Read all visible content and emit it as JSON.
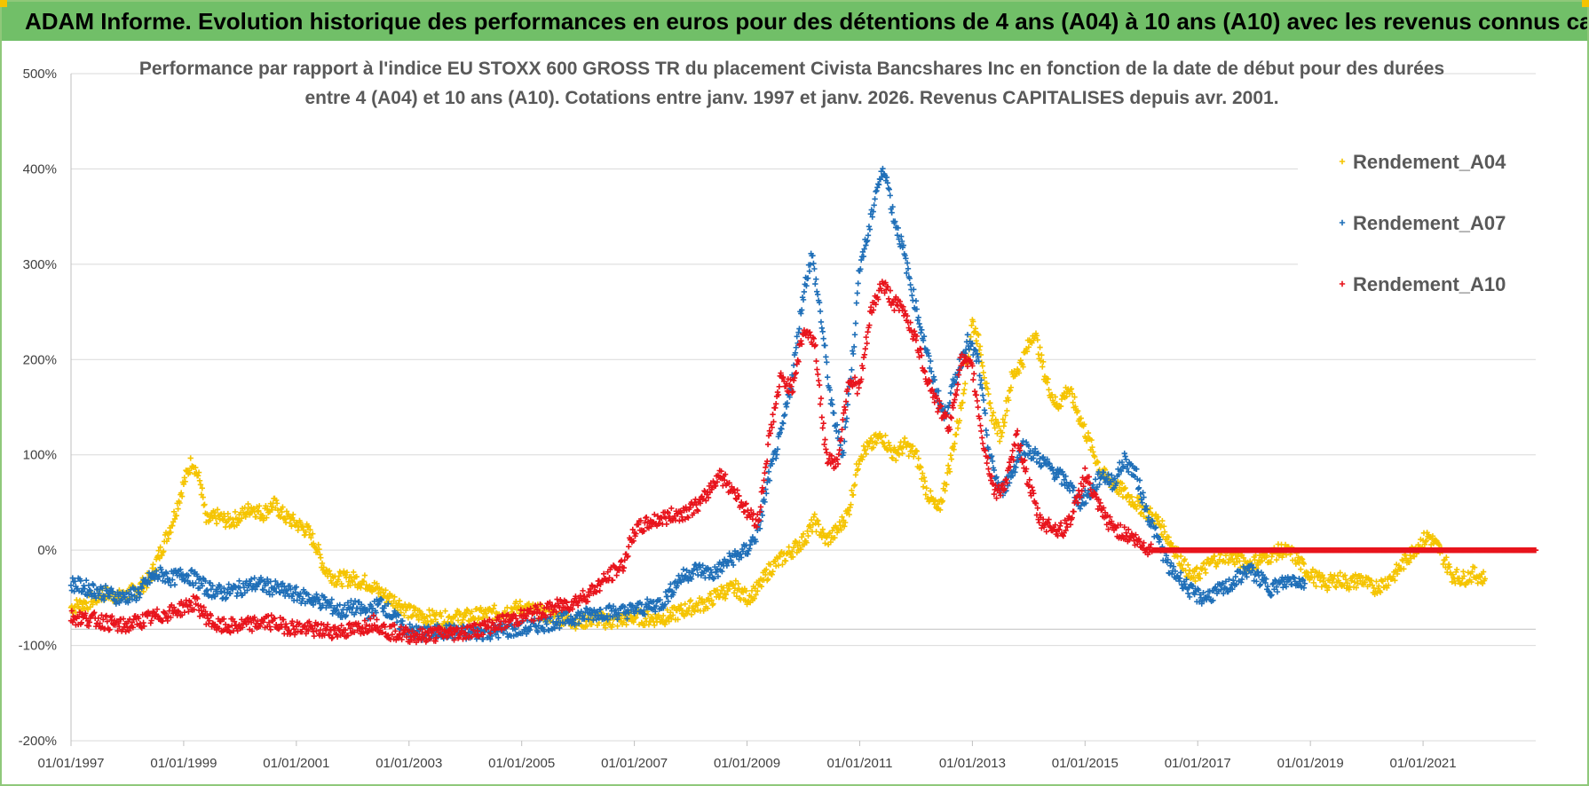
{
  "banner": {
    "title": "ADAM Informe. Evolution historique des performances en euros pour des détentions de 4 ans (A04) à 10 ans (A10) avec les revenus connus capitalisés"
  },
  "chart_data": {
    "type": "scatter",
    "title_line1": "Performance par rapport à l'indice EU STOXX 600 GROSS TR  du placement Civista Bancshares Inc en fonction de la date de début pour des durées",
    "title_line2": "entre 4 (A04) et 10 ans (A10).  Cotations entre janv. 1997 et janv. 2026. Revenus CAPITALISES depuis avr. 2001.",
    "xlim": [
      1997.0,
      2023.0
    ],
    "ylim": [
      -200,
      500
    ],
    "x_ticks": [
      1997,
      1999,
      2001,
      2003,
      2005,
      2007,
      2009,
      2011,
      2013,
      2015,
      2017,
      2019,
      2021
    ],
    "x_tick_labels": [
      "01/01/1997",
      "01/01/1999",
      "01/01/2001",
      "01/01/2003",
      "01/01/2005",
      "01/01/2007",
      "01/01/2009",
      "01/01/2011",
      "01/01/2013",
      "01/01/2015",
      "01/01/2017",
      "01/01/2019",
      "01/01/2021"
    ],
    "y_ticks": [
      -200,
      -100,
      0,
      100,
      200,
      300,
      400,
      500
    ],
    "y_tick_labels": [
      "-200%",
      "-100%",
      "0%",
      "100%",
      "200%",
      "300%",
      "400%",
      "500%"
    ],
    "grid": "horizontal",
    "legend_position": "top-right",
    "series": [
      {
        "name": "Rendement_A04",
        "color": "#f5c400",
        "points": [
          [
            1997.0,
            -60
          ],
          [
            1997.3,
            -55
          ],
          [
            1997.6,
            -45
          ],
          [
            1997.9,
            -50
          ],
          [
            1998.2,
            -40
          ],
          [
            1998.4,
            -30
          ],
          [
            1998.6,
            0
          ],
          [
            1998.8,
            30
          ],
          [
            1999.0,
            70
          ],
          [
            1999.15,
            95
          ],
          [
            1999.3,
            70
          ],
          [
            1999.4,
            30
          ],
          [
            1999.6,
            35
          ],
          [
            1999.8,
            30
          ],
          [
            2000.0,
            35
          ],
          [
            2000.2,
            45
          ],
          [
            2000.4,
            38
          ],
          [
            2000.6,
            48
          ],
          [
            2000.8,
            35
          ],
          [
            2001.0,
            28
          ],
          [
            2001.2,
            20
          ],
          [
            2001.35,
            5
          ],
          [
            2001.5,
            -20
          ],
          [
            2001.7,
            -30
          ],
          [
            2002.0,
            -30
          ],
          [
            2002.3,
            -35
          ],
          [
            2002.5,
            -45
          ],
          [
            2002.8,
            -55
          ],
          [
            2003.0,
            -65
          ],
          [
            2003.3,
            -70
          ],
          [
            2003.6,
            -72
          ],
          [
            2004.0,
            -70
          ],
          [
            2004.3,
            -68
          ],
          [
            2004.6,
            -65
          ],
          [
            2005.0,
            -60
          ],
          [
            2005.3,
            -65
          ],
          [
            2005.6,
            -70
          ],
          [
            2006.0,
            -75
          ],
          [
            2006.3,
            -72
          ],
          [
            2006.6,
            -75
          ],
          [
            2007.0,
            -70
          ],
          [
            2007.3,
            -72
          ],
          [
            2007.6,
            -70
          ],
          [
            2008.0,
            -60
          ],
          [
            2008.3,
            -55
          ],
          [
            2008.5,
            -45
          ],
          [
            2008.8,
            -40
          ],
          [
            2009.0,
            -50
          ],
          [
            2009.2,
            -40
          ],
          [
            2009.4,
            -20
          ],
          [
            2009.6,
            -10
          ],
          [
            2009.8,
            0
          ],
          [
            2010.0,
            10
          ],
          [
            2010.2,
            30
          ],
          [
            2010.4,
            10
          ],
          [
            2010.6,
            20
          ],
          [
            2010.8,
            40
          ],
          [
            2011.0,
            100
          ],
          [
            2011.2,
            110
          ],
          [
            2011.4,
            120
          ],
          [
            2011.6,
            100
          ],
          [
            2011.8,
            110
          ],
          [
            2012.0,
            100
          ],
          [
            2012.2,
            60
          ],
          [
            2012.4,
            40
          ],
          [
            2012.6,
            90
          ],
          [
            2012.8,
            150
          ],
          [
            2013.0,
            240
          ],
          [
            2013.15,
            210
          ],
          [
            2013.3,
            150
          ],
          [
            2013.5,
            120
          ],
          [
            2013.7,
            180
          ],
          [
            2013.9,
            200
          ],
          [
            2014.1,
            230
          ],
          [
            2014.3,
            180
          ],
          [
            2014.5,
            150
          ],
          [
            2014.7,
            170
          ],
          [
            2014.9,
            140
          ],
          [
            2015.1,
            110
          ],
          [
            2015.3,
            80
          ],
          [
            2015.5,
            70
          ],
          [
            2015.7,
            60
          ],
          [
            2015.9,
            50
          ],
          [
            2016.1,
            40
          ],
          [
            2016.3,
            30
          ],
          [
            2016.5,
            10
          ],
          [
            2016.7,
            -10
          ],
          [
            2016.9,
            -30
          ],
          [
            2017.1,
            -20
          ],
          [
            2017.3,
            -10
          ],
          [
            2017.5,
            -5
          ],
          [
            2017.7,
            -10
          ],
          [
            2017.9,
            -15
          ],
          [
            2018.1,
            -10
          ],
          [
            2018.3,
            -5
          ],
          [
            2018.5,
            0
          ],
          [
            2018.7,
            -5
          ],
          [
            2018.9,
            -20
          ],
          [
            2019.1,
            -30
          ],
          [
            2019.3,
            -35
          ],
          [
            2019.5,
            -30
          ],
          [
            2019.7,
            -35
          ],
          [
            2019.9,
            -30
          ],
          [
            2020.1,
            -40
          ],
          [
            2020.3,
            -35
          ],
          [
            2020.5,
            -25
          ],
          [
            2020.7,
            -10
          ],
          [
            2020.9,
            5
          ],
          [
            2021.1,
            15
          ],
          [
            2021.3,
            0
          ],
          [
            2021.5,
            -25
          ],
          [
            2021.7,
            -30
          ],
          [
            2021.9,
            -25
          ],
          [
            2022.1,
            -30
          ]
        ]
      },
      {
        "name": "Rendement_A07",
        "color": "#1f6fb8",
        "points": [
          [
            1997.0,
            -35
          ],
          [
            1997.3,
            -40
          ],
          [
            1997.6,
            -45
          ],
          [
            1997.9,
            -50
          ],
          [
            1998.2,
            -45
          ],
          [
            1998.4,
            -30
          ],
          [
            1998.6,
            -25
          ],
          [
            1998.8,
            -30
          ],
          [
            1999.0,
            -25
          ],
          [
            1999.2,
            -30
          ],
          [
            1999.4,
            -40
          ],
          [
            1999.7,
            -45
          ],
          [
            2000.0,
            -40
          ],
          [
            2000.3,
            -35
          ],
          [
            2000.6,
            -40
          ],
          [
            2000.9,
            -45
          ],
          [
            2001.2,
            -50
          ],
          [
            2001.5,
            -55
          ],
          [
            2001.8,
            -65
          ],
          [
            2002.0,
            -60
          ],
          [
            2002.3,
            -65
          ],
          [
            2002.5,
            -55
          ],
          [
            2002.8,
            -75
          ],
          [
            2003.0,
            -85
          ],
          [
            2003.3,
            -88
          ],
          [
            2003.6,
            -85
          ],
          [
            2004.0,
            -87
          ],
          [
            2004.4,
            -86
          ],
          [
            2004.8,
            -84
          ],
          [
            2005.2,
            -80
          ],
          [
            2005.6,
            -75
          ],
          [
            2006.0,
            -70
          ],
          [
            2006.4,
            -65
          ],
          [
            2006.8,
            -65
          ],
          [
            2007.2,
            -60
          ],
          [
            2007.5,
            -55
          ],
          [
            2007.8,
            -30
          ],
          [
            2008.1,
            -20
          ],
          [
            2008.4,
            -25
          ],
          [
            2008.7,
            -10
          ],
          [
            2009.0,
            0
          ],
          [
            2009.2,
            20
          ],
          [
            2009.4,
            80
          ],
          [
            2009.6,
            120
          ],
          [
            2009.8,
            180
          ],
          [
            2010.0,
            270
          ],
          [
            2010.15,
            310
          ],
          [
            2010.3,
            250
          ],
          [
            2010.5,
            150
          ],
          [
            2010.7,
            100
          ],
          [
            2010.9,
            220
          ],
          [
            2011.0,
            300
          ],
          [
            2011.15,
            330
          ],
          [
            2011.3,
            380
          ],
          [
            2011.45,
            400
          ],
          [
            2011.6,
            350
          ],
          [
            2011.75,
            320
          ],
          [
            2011.9,
            280
          ],
          [
            2012.1,
            230
          ],
          [
            2012.3,
            180
          ],
          [
            2012.5,
            140
          ],
          [
            2012.7,
            180
          ],
          [
            2012.9,
            220
          ],
          [
            2013.1,
            200
          ],
          [
            2013.3,
            100
          ],
          [
            2013.5,
            60
          ],
          [
            2013.7,
            80
          ],
          [
            2013.9,
            110
          ],
          [
            2014.1,
            100
          ],
          [
            2014.3,
            90
          ],
          [
            2014.5,
            80
          ],
          [
            2014.7,
            70
          ],
          [
            2014.9,
            50
          ],
          [
            2015.1,
            60
          ],
          [
            2015.3,
            80
          ],
          [
            2015.5,
            70
          ],
          [
            2015.7,
            95
          ],
          [
            2015.9,
            80
          ],
          [
            2016.1,
            40
          ],
          [
            2016.3,
            10
          ],
          [
            2016.5,
            -20
          ],
          [
            2016.7,
            -30
          ],
          [
            2016.9,
            -45
          ],
          [
            2017.1,
            -50
          ],
          [
            2017.3,
            -45
          ],
          [
            2017.5,
            -40
          ],
          [
            2017.7,
            -30
          ],
          [
            2017.9,
            -20
          ],
          [
            2018.1,
            -30
          ],
          [
            2018.3,
            -40
          ],
          [
            2018.5,
            -35
          ],
          [
            2018.7,
            -30
          ],
          [
            2018.9,
            -35
          ]
        ]
      },
      {
        "name": "Rendement_A10",
        "color": "#e8141c",
        "points": [
          [
            1997.0,
            -70
          ],
          [
            1997.3,
            -72
          ],
          [
            1997.6,
            -75
          ],
          [
            1997.9,
            -80
          ],
          [
            1998.2,
            -75
          ],
          [
            1998.5,
            -70
          ],
          [
            1998.8,
            -65
          ],
          [
            1999.0,
            -60
          ],
          [
            1999.2,
            -55
          ],
          [
            1999.4,
            -70
          ],
          [
            1999.6,
            -80
          ],
          [
            1999.9,
            -80
          ],
          [
            2000.2,
            -78
          ],
          [
            2000.5,
            -75
          ],
          [
            2000.8,
            -80
          ],
          [
            2001.1,
            -82
          ],
          [
            2001.4,
            -84
          ],
          [
            2001.7,
            -85
          ],
          [
            2002.0,
            -84
          ],
          [
            2002.2,
            -80
          ],
          [
            2002.4,
            -75
          ],
          [
            2002.6,
            -85
          ],
          [
            2002.9,
            -88
          ],
          [
            2003.2,
            -90
          ],
          [
            2003.5,
            -88
          ],
          [
            2003.8,
            -87
          ],
          [
            2004.1,
            -85
          ],
          [
            2004.4,
            -80
          ],
          [
            2004.7,
            -75
          ],
          [
            2005.0,
            -70
          ],
          [
            2005.3,
            -65
          ],
          [
            2005.6,
            -60
          ],
          [
            2005.9,
            -55
          ],
          [
            2006.2,
            -45
          ],
          [
            2006.5,
            -30
          ],
          [
            2006.8,
            -15
          ],
          [
            2007.0,
            20
          ],
          [
            2007.3,
            30
          ],
          [
            2007.6,
            35
          ],
          [
            2007.9,
            40
          ],
          [
            2008.2,
            50
          ],
          [
            2008.5,
            80
          ],
          [
            2008.8,
            60
          ],
          [
            2009.0,
            40
          ],
          [
            2009.2,
            30
          ],
          [
            2009.4,
            120
          ],
          [
            2009.6,
            180
          ],
          [
            2009.8,
            170
          ],
          [
            2010.0,
            230
          ],
          [
            2010.2,
            220
          ],
          [
            2010.4,
            100
          ],
          [
            2010.6,
            90
          ],
          [
            2010.8,
            180
          ],
          [
            2011.0,
            170
          ],
          [
            2011.2,
            250
          ],
          [
            2011.4,
            280
          ],
          [
            2011.6,
            260
          ],
          [
            2011.8,
            250
          ],
          [
            2012.0,
            220
          ],
          [
            2012.2,
            180
          ],
          [
            2012.4,
            150
          ],
          [
            2012.6,
            130
          ],
          [
            2012.8,
            200
          ],
          [
            2013.0,
            190
          ],
          [
            2013.2,
            110
          ],
          [
            2013.4,
            60
          ],
          [
            2013.6,
            70
          ],
          [
            2013.8,
            120
          ],
          [
            2014.0,
            70
          ],
          [
            2014.2,
            30
          ],
          [
            2014.4,
            25
          ],
          [
            2014.6,
            20
          ],
          [
            2014.8,
            40
          ],
          [
            2015.0,
            80
          ],
          [
            2015.2,
            50
          ],
          [
            2015.4,
            30
          ],
          [
            2015.6,
            20
          ],
          [
            2015.8,
            15
          ],
          [
            2016.0,
            5
          ],
          [
            2016.2,
            0
          ],
          [
            2016.5,
            0
          ],
          [
            2017.0,
            0
          ],
          [
            2017.5,
            0
          ],
          [
            2018.0,
            0
          ],
          [
            2018.5,
            0
          ],
          [
            2019.0,
            0
          ],
          [
            2019.5,
            0
          ],
          [
            2020.0,
            0
          ],
          [
            2020.5,
            0
          ],
          [
            2021.0,
            0
          ],
          [
            2021.5,
            0
          ],
          [
            2022.0,
            0
          ],
          [
            2022.5,
            0
          ],
          [
            2023.0,
            0
          ]
        ]
      }
    ]
  }
}
